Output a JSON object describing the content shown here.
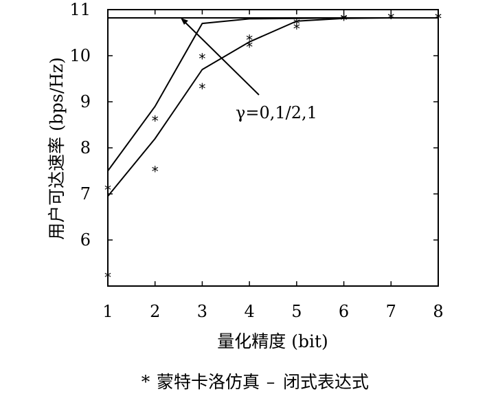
{
  "chart_data": {
    "type": "line",
    "xlabel": "量化精度 (bit)",
    "ylabel": "用户可达速率 (bps/Hz)",
    "xlim": [
      1,
      8
    ],
    "ylim": [
      5,
      11
    ],
    "x_ticks": [
      1,
      2,
      3,
      4,
      5,
      6,
      7,
      8
    ],
    "y_ticks": [
      6,
      7,
      8,
      9,
      10,
      11
    ],
    "y_tick_labels": [
      "6",
      "7",
      "8",
      "9",
      "10",
      "11"
    ],
    "x": [
      1,
      2,
      3,
      4,
      5,
      6,
      7,
      8
    ],
    "series": [
      {
        "style": "line",
        "values": [
          10.82,
          10.82,
          10.82,
          10.82,
          10.82,
          10.82,
          10.82,
          10.82
        ]
      },
      {
        "style": "line",
        "values": [
          7.5,
          8.9,
          10.7,
          10.8,
          10.81,
          10.82,
          10.82,
          10.82
        ]
      },
      {
        "style": "line",
        "values": [
          6.95,
          8.2,
          9.7,
          10.3,
          10.75,
          10.81,
          10.82,
          10.82
        ]
      },
      {
        "style": "markers",
        "values": [
          7.1,
          8.6,
          9.95,
          10.35,
          10.7,
          10.8,
          10.82,
          10.82
        ]
      },
      {
        "style": "markers",
        "values": [
          5.2,
          7.5,
          9.3,
          10.2,
          10.6,
          10.78,
          10.82,
          10.82
        ]
      }
    ],
    "legend": {
      "position": "bottom",
      "entries": [
        {
          "marker": "*",
          "label": "蒙特卡洛仿真"
        },
        {
          "marker": "–",
          "label": "闭式表达式"
        }
      ]
    },
    "annotation": {
      "text": "γ=0,1/2,1"
    },
    "grid": false
  }
}
